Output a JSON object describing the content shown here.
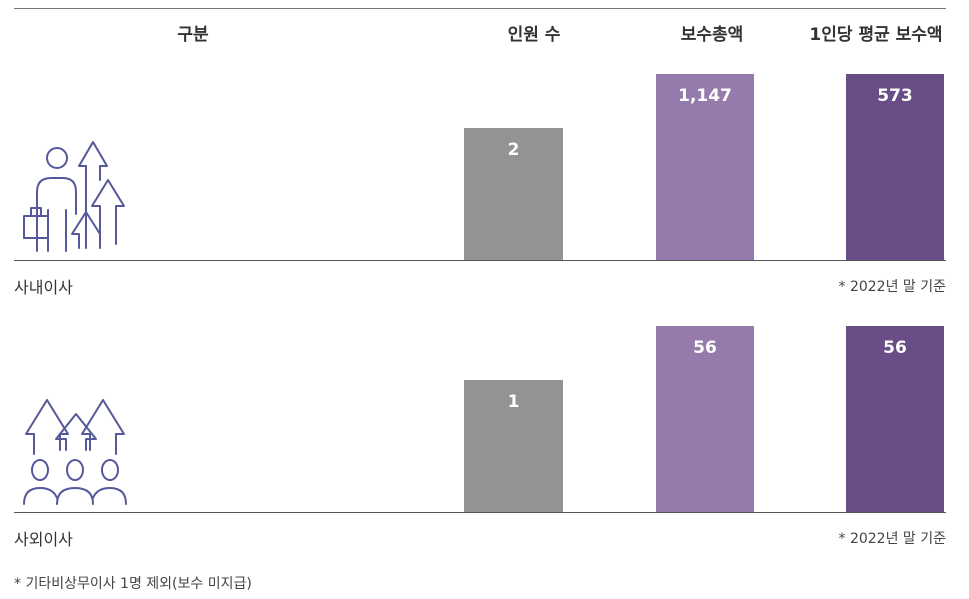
{
  "headers": {
    "category": "구분",
    "headcount": "인원 수",
    "total_pay": "보수총액",
    "avg_pay": "1인당 평균 보수액"
  },
  "colors": {
    "headcount": "#939393",
    "total_pay": "#957bac",
    "avg_pay": "#684d87",
    "icon": "#55589a"
  },
  "sections": [
    {
      "title": "사내이사",
      "note": "* 2022년 말 기준",
      "icon": "person-with-briefcase-arrows-icon",
      "values": {
        "headcount": 2,
        "total_pay": 1147,
        "avg_pay": 573
      },
      "labels": {
        "headcount": "2",
        "total_pay": "1,147",
        "avg_pay": "573"
      },
      "fill": {
        "headcount": 0.71,
        "total_pay": 1.0,
        "avg_pay": 1.0
      }
    },
    {
      "title": "사외이사",
      "note": "* 2022년 말 기준",
      "icon": "group-with-arrows-icon",
      "values": {
        "headcount": 1,
        "total_pay": 56,
        "avg_pay": 56
      },
      "labels": {
        "headcount": "1",
        "total_pay": "56",
        "avg_pay": "56"
      },
      "fill": {
        "headcount": 0.71,
        "total_pay": 1.0,
        "avg_pay": 1.0
      }
    }
  ],
  "footnote": "* 기타비상무이사 1명 제외(보수 미지급)",
  "chart_data": [
    {
      "type": "bar",
      "title": "사내이사",
      "categories": [
        "인원 수",
        "보수총액",
        "1인당 평균 보수액"
      ],
      "values": [
        2,
        1147,
        573
      ],
      "note": "* 2022년 말 기준"
    },
    {
      "type": "bar",
      "title": "사외이사",
      "categories": [
        "인원 수",
        "보수총액",
        "1인당 평균 보수액"
      ],
      "values": [
        1,
        56,
        56
      ],
      "note": "* 2022년 말 기준"
    }
  ]
}
